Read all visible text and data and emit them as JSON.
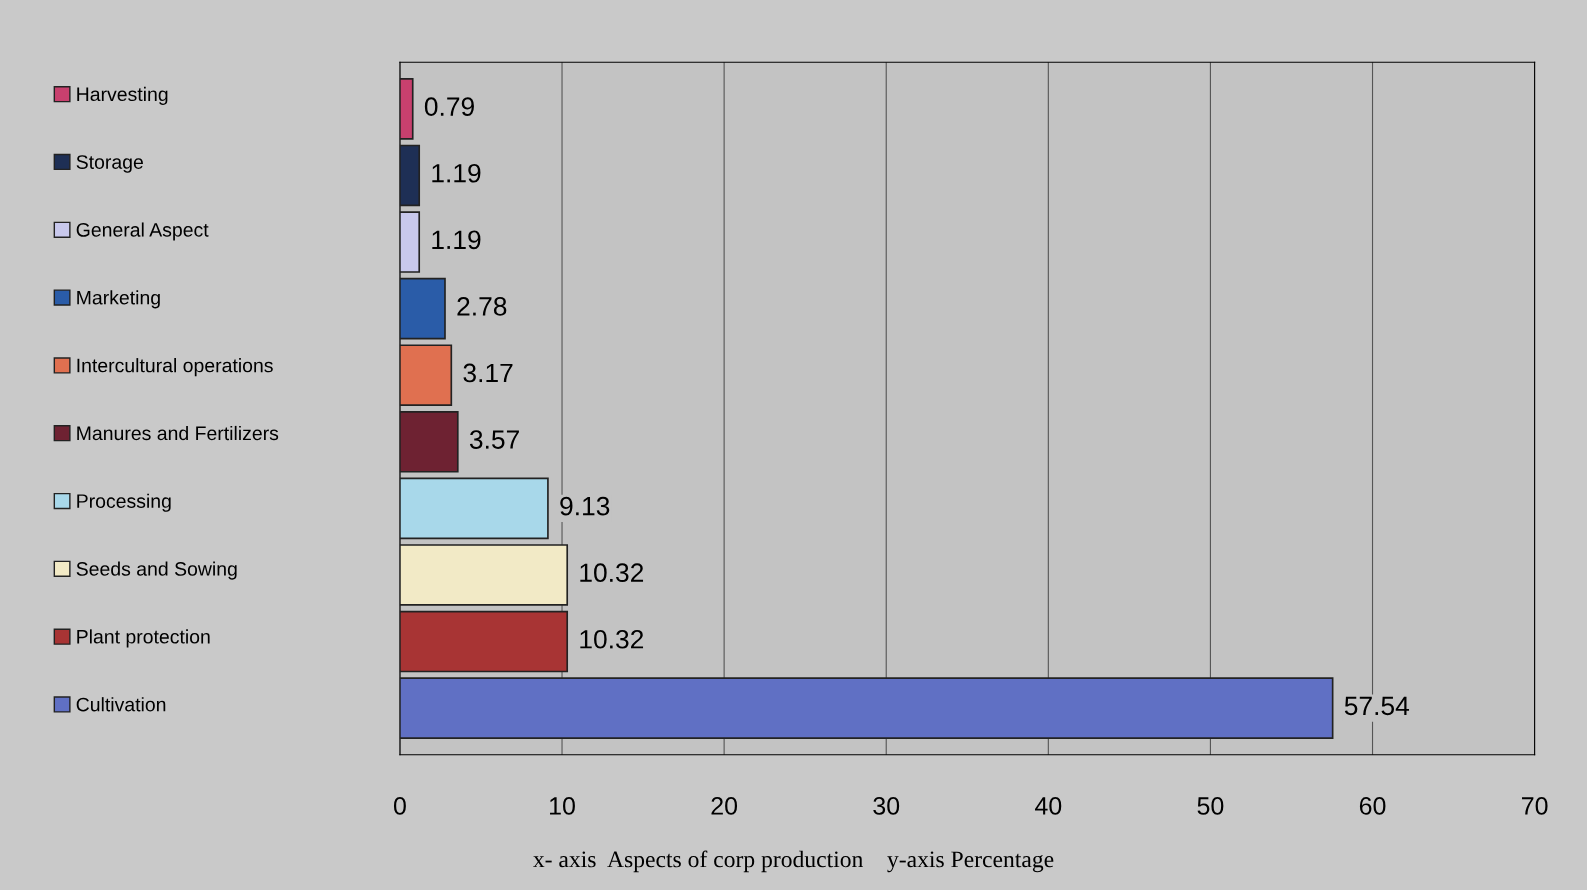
{
  "chart_data": {
    "type": "bar",
    "orientation": "horizontal",
    "stacked": true,
    "categories": [
      null,
      null,
      null,
      null,
      null,
      null,
      null,
      null,
      null,
      null
    ],
    "series": [
      {
        "name": "Harvesting",
        "color": "#c8406e",
        "values": [
          0.79,
          null,
          null,
          null,
          null,
          null,
          null,
          null,
          null,
          null
        ]
      },
      {
        "name": "Storage",
        "color": "#1e2f55",
        "values": [
          null,
          1.19,
          null,
          null,
          null,
          null,
          null,
          null,
          null,
          null
        ]
      },
      {
        "name": "General Aspect",
        "color": "#c8c8ec",
        "values": [
          null,
          null,
          1.19,
          null,
          null,
          null,
          null,
          null,
          null,
          null
        ]
      },
      {
        "name": "Marketing",
        "color": "#2a5ca8",
        "values": [
          null,
          null,
          null,
          2.78,
          null,
          null,
          null,
          null,
          null,
          null
        ]
      },
      {
        "name": "Intercultural operations",
        "color": "#e07050",
        "values": [
          null,
          null,
          null,
          null,
          3.17,
          null,
          null,
          null,
          null,
          null
        ]
      },
      {
        "name": "Manures and Fertilizers",
        "color": "#6e2232",
        "values": [
          null,
          null,
          null,
          null,
          null,
          3.57,
          null,
          null,
          null,
          null
        ]
      },
      {
        "name": "Processing",
        "color": "#a8d8ea",
        "values": [
          null,
          null,
          null,
          null,
          null,
          null,
          9.13,
          null,
          null,
          null
        ]
      },
      {
        "name": "Seeds and Sowing",
        "color": "#f2eac6",
        "values": [
          null,
          null,
          null,
          null,
          null,
          null,
          null,
          10.32,
          null,
          null
        ]
      },
      {
        "name": "Plant protection",
        "color": "#a83434",
        "values": [
          null,
          null,
          null,
          null,
          null,
          null,
          null,
          null,
          10.32,
          null
        ]
      },
      {
        "name": "Cultivation",
        "color": "#6070c4",
        "values": [
          null,
          null,
          null,
          null,
          null,
          null,
          null,
          null,
          null,
          57.54
        ]
      }
    ],
    "data_labels": true,
    "xlim": [
      0,
      70
    ],
    "xticks": [
      0,
      10,
      20,
      30,
      40,
      50,
      60,
      70
    ],
    "grid": "x",
    "legend": "left",
    "tick_labels": "x",
    "annotations": [
      "x- axis  Aspects of corp production    y-axis Percentage"
    ]
  }
}
